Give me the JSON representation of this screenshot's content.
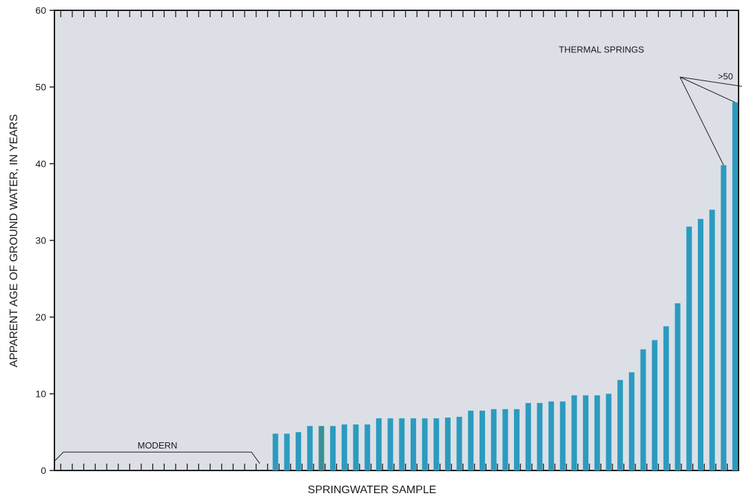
{
  "chart_data": {
    "type": "bar",
    "title": "",
    "xlabel": "SPRINGWATER SAMPLE",
    "ylabel": "APPARENT AGE OF GROUND WATER, IN YEARS",
    "ylim": [
      0,
      60
    ],
    "yticks": [
      "0",
      "10",
      "20",
      "30",
      "40",
      "50",
      "60"
    ],
    "grid": false,
    "colors": {
      "plot_bg": "#dcdfe6",
      "bar": "#2b9bbf",
      "bar_alt": "#3a8f96",
      "axis": "#1a1a1a"
    },
    "modern_sample_count": 18,
    "values": [
      4.8,
      4.8,
      5.0,
      5.8,
      5.8,
      5.8,
      6.0,
      6.0,
      6.0,
      6.8,
      6.8,
      6.8,
      6.8,
      6.8,
      6.8,
      6.9,
      7.0,
      7.8,
      7.8,
      8.0,
      8.0,
      8.0,
      8.8,
      8.8,
      9.0,
      9.0,
      9.8,
      9.8,
      9.8,
      10.0,
      11.8,
      12.8,
      15.8,
      17.0,
      18.8,
      21.8,
      31.8,
      32.8,
      34.0,
      39.8,
      48.0,
      50.0
    ],
    "annotations": {
      "modern": "MODERN",
      "thermal": "THERMAL SPRINGS",
      "gt50": ">50"
    }
  }
}
